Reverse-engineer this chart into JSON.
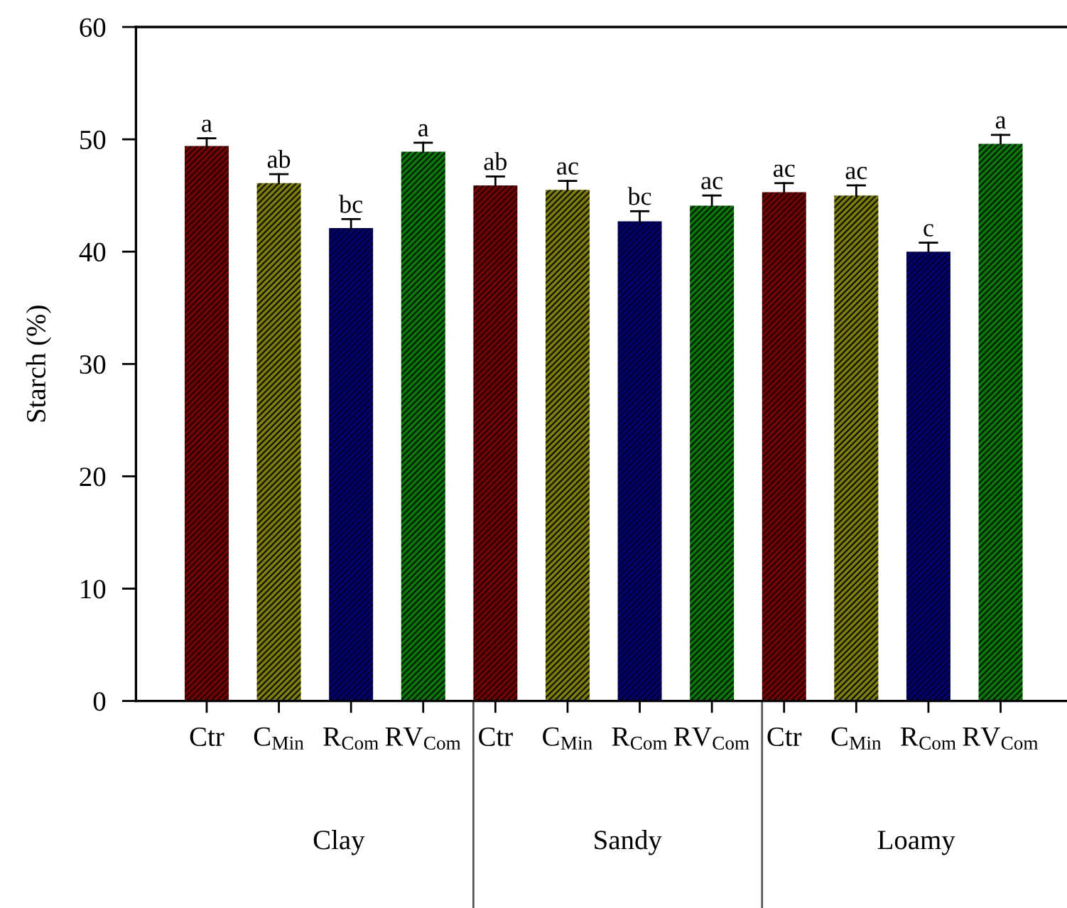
{
  "chart_data": {
    "type": "bar",
    "ylabel": "Starch (%)",
    "categories": [
      "Clay",
      "Sandy",
      "Loamy"
    ],
    "series": [
      {
        "name": "Ctr",
        "color": "#800000",
        "values": [
          49.4,
          45.9,
          45.3
        ],
        "errors": [
          [
            49.4,
            50.1
          ],
          [
            45.9,
            46.7
          ],
          [
            45.3,
            46.1
          ]
        ],
        "value_labels": [
          "a",
          "ab",
          "ac"
        ]
      },
      {
        "name": "C$_{Min}$",
        "color": "#808000",
        "values": [
          46.1,
          45.5,
          45.0
        ],
        "errors": [
          [
            46.1,
            46.9
          ],
          [
            45.5,
            46.3
          ],
          [
            45.0,
            45.9
          ]
        ],
        "value_labels": [
          "ab",
          "ac",
          "ac"
        ]
      },
      {
        "name": "R$_{Com}$",
        "color": "#000080",
        "values": [
          42.1,
          42.7,
          40.0
        ],
        "errors": [
          [
            42.1,
            42.9
          ],
          [
            42.7,
            43.6
          ],
          [
            40.0,
            40.8
          ]
        ],
        "value_labels": [
          "bc",
          "bc",
          "c"
        ]
      },
      {
        "name": "RV$_{Com}$",
        "color": "#008000",
        "values": [
          48.9,
          44.1,
          49.6
        ],
        "errors": [
          [
            48.9,
            49.7
          ],
          [
            44.1,
            45.0
          ],
          [
            49.6,
            50.4
          ]
        ],
        "value_labels": [
          "a",
          "ac",
          "a"
        ]
      }
    ],
    "ylim": [
      0,
      60
    ],
    "yticks": [
      0,
      10,
      20,
      30,
      40,
      50,
      60
    ]
  }
}
